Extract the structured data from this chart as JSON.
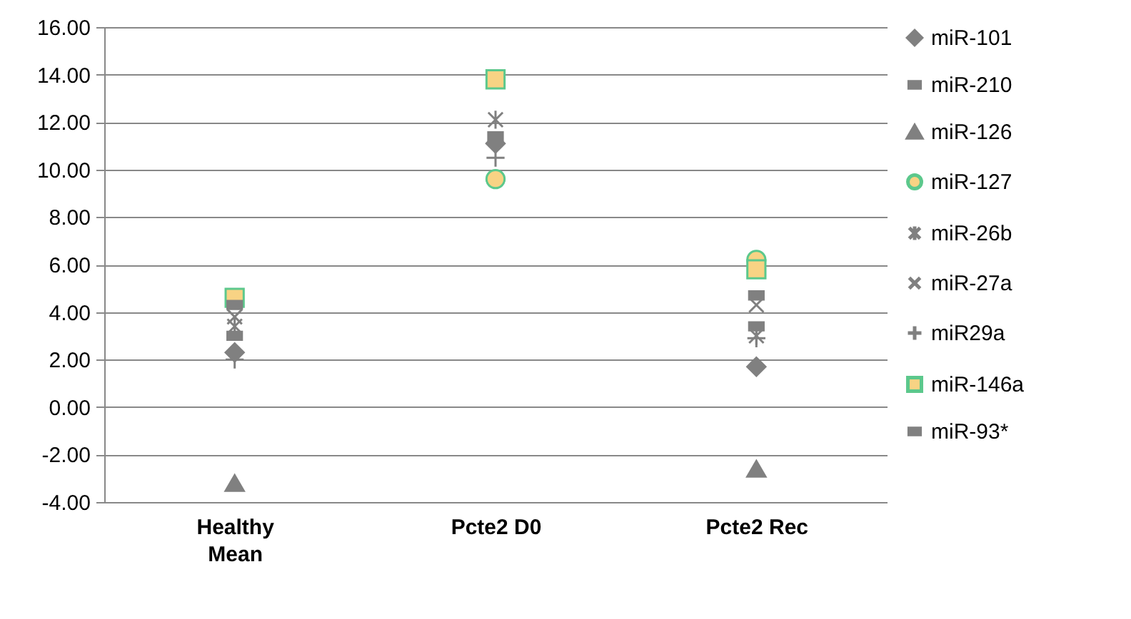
{
  "chart_data": {
    "type": "scatter",
    "categories": [
      "Healthy Mean",
      "Pcte2 D0",
      "Pcte2 Rec"
    ],
    "ylim": [
      -4,
      16
    ],
    "yticks": [
      {
        "value": -4,
        "label": "-4.00"
      },
      {
        "value": -2,
        "label": "-2.00"
      },
      {
        "value": 0,
        "label": "0.00"
      },
      {
        "value": 2,
        "label": "2.00"
      },
      {
        "value": 4,
        "label": "4.00"
      },
      {
        "value": 6,
        "label": "6.00"
      },
      {
        "value": 8,
        "label": "8.00"
      },
      {
        "value": 10,
        "label": "10.00"
      },
      {
        "value": 12,
        "label": "12.00"
      },
      {
        "value": 14,
        "label": "14.00"
      },
      {
        "value": 16,
        "label": "16.00"
      }
    ],
    "grid": "y",
    "legend": "right",
    "series": [
      {
        "name": "miR-101",
        "color": "#808080",
        "marker": "diamond",
        "values": [
          2.3,
          11.1,
          1.7
        ]
      },
      {
        "name": "miR-210",
        "color": "#808080",
        "values": [
          3.0,
          11.4,
          3.4
        ]
      },
      {
        "name": "miR-126",
        "color": "#808080",
        "marker": "triangle",
        "values": [
          -3.2,
          null,
          -2.6
        ]
      },
      {
        "name": "miR-127",
        "color": "#f8d384",
        "marker": "circle",
        "values": [
          null,
          9.6,
          6.2
        ]
      },
      {
        "name": "miR-26b",
        "color": "#808080",
        "values": [
          3.4,
          12.1,
          3.0
        ]
      },
      {
        "name": "miR-27a",
        "color": "#808080",
        "marker": "cross",
        "values": [
          3.8,
          null,
          4.3
        ]
      },
      {
        "name": "miR29a",
        "color": "#808080",
        "values": [
          2.0,
          10.5,
          2.9
        ]
      },
      {
        "name": "miR-146a",
        "color": "#f8d384",
        "marker": "square",
        "values": [
          4.6,
          13.8,
          5.8
        ]
      },
      {
        "name": "miR-93*",
        "color": "#808080",
        "values": [
          4.3,
          null,
          4.7
        ]
      }
    ]
  }
}
